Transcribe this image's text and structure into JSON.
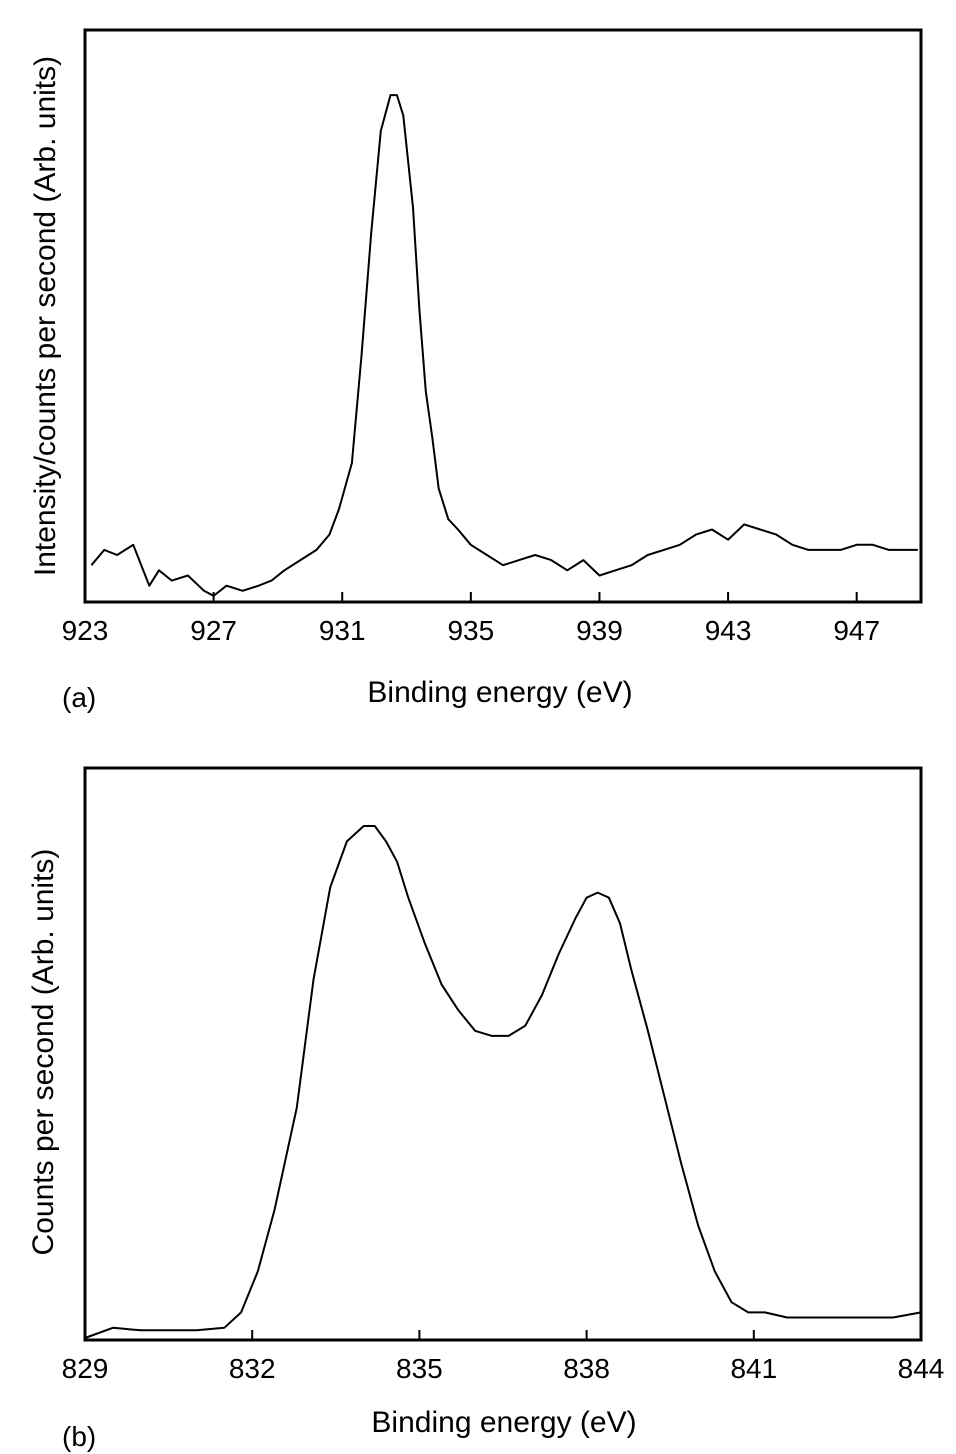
{
  "chart_data": [
    {
      "type": "line",
      "panel_label": "(a)",
      "xlabel": "Binding energy (eV)",
      "ylabel": "Intensity/counts per second (Arb. units)",
      "xlim": [
        923,
        949
      ],
      "ylim": [
        0,
        100
      ],
      "xticks": [
        923,
        927,
        931,
        935,
        939,
        943,
        947
      ],
      "grid": false,
      "series": [
        {
          "x": [
            923.2,
            923.6,
            924.0,
            924.5,
            925.0,
            925.3,
            925.7,
            926.2,
            926.7,
            927.0,
            927.4,
            927.9,
            928.4,
            928.8,
            929.2,
            929.7,
            930.2,
            930.6,
            930.9,
            931.3,
            931.6,
            931.9,
            932.2,
            932.5,
            932.7,
            932.9,
            933.2,
            933.4,
            933.6,
            933.8,
            934.0,
            934.3,
            934.6,
            935.0,
            935.5,
            936.0,
            936.5,
            937.0,
            937.5,
            938.0,
            938.5,
            939.0,
            939.5,
            940.0,
            940.5,
            941.0,
            941.5,
            942.0,
            942.5,
            943.0,
            943.5,
            944.0,
            944.5,
            945.0,
            945.5,
            946.0,
            946.5,
            947.0,
            947.5,
            948.0,
            948.5,
            948.9
          ],
          "y": [
            7,
            10,
            9,
            11,
            3,
            6,
            4,
            5,
            2,
            1,
            3,
            2,
            3,
            4,
            6,
            8,
            10,
            13,
            18,
            27,
            48,
            72,
            92,
            99,
            99,
            95,
            77,
            57,
            41,
            32,
            22,
            16,
            14,
            11,
            9,
            7,
            8,
            9,
            8,
            6,
            8,
            5,
            6,
            7,
            9,
            10,
            11,
            13,
            14,
            12,
            15,
            14,
            13,
            11,
            10,
            10,
            10,
            11,
            11,
            10,
            10,
            10
          ]
        }
      ]
    },
    {
      "type": "line",
      "panel_label": "(b)",
      "xlabel": "Binding energy (eV)",
      "ylabel": "Counts per second (Arb. units)",
      "xlim": [
        829,
        844
      ],
      "ylim": [
        0,
        100
      ],
      "xticks": [
        829,
        832,
        835,
        838,
        841,
        844
      ],
      "grid": false,
      "series": [
        {
          "x": [
            829.0,
            829.5,
            830.0,
            830.5,
            831.0,
            831.5,
            831.8,
            832.1,
            832.4,
            832.8,
            833.1,
            833.4,
            833.7,
            834.0,
            834.2,
            834.4,
            834.6,
            834.8,
            835.1,
            835.4,
            835.7,
            836.0,
            836.3,
            836.6,
            836.9,
            837.2,
            837.5,
            837.8,
            838.0,
            838.2,
            838.4,
            838.6,
            838.8,
            839.1,
            839.4,
            839.7,
            840.0,
            840.3,
            840.6,
            840.9,
            841.2,
            841.6,
            842.0,
            842.5,
            843.0,
            843.5,
            844.0
          ],
          "y": [
            0,
            2,
            1.5,
            1.5,
            1.5,
            2,
            5,
            13,
            25,
            45,
            70,
            88,
            97,
            100,
            100,
            97,
            93,
            86,
            77,
            69,
            64,
            60,
            59,
            59,
            61,
            67,
            75,
            82,
            86,
            87,
            86,
            81,
            72,
            60,
            47,
            34,
            22,
            13,
            7,
            5,
            5,
            4,
            4,
            4,
            4,
            4,
            5
          ]
        }
      ]
    }
  ]
}
